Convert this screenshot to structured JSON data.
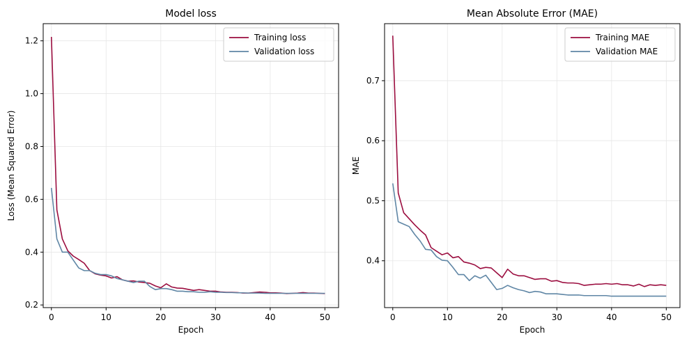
{
  "chart_data": [
    {
      "type": "line",
      "title": "Model loss",
      "xlabel": "Epoch",
      "ylabel": "Loss (Mean Squared Error)",
      "xlim": [
        -1.5,
        52.5
      ],
      "ylim": [
        0.19,
        1.265
      ],
      "xticks": [
        0,
        10,
        20,
        30,
        40,
        50
      ],
      "yticks": [
        0.2,
        0.4,
        0.6,
        0.8,
        1.0,
        1.2
      ],
      "ytick_format": 1,
      "grid": true,
      "legend_position": "top-right",
      "series": [
        {
          "name": "Training loss",
          "color": "#9b0d3f",
          "x": [
            0,
            1,
            2,
            3,
            4,
            5,
            6,
            7,
            8,
            9,
            10,
            11,
            12,
            13,
            14,
            15,
            16,
            17,
            18,
            19,
            20,
            21,
            22,
            23,
            24,
            25,
            26,
            27,
            28,
            29,
            30,
            31,
            32,
            33,
            34,
            35,
            36,
            37,
            38,
            39,
            40,
            41,
            42,
            43,
            44,
            45,
            46,
            47,
            48,
            49,
            50
          ],
          "y": [
            1.215,
            0.56,
            0.45,
            0.405,
            0.385,
            0.372,
            0.358,
            0.33,
            0.318,
            0.313,
            0.31,
            0.302,
            0.307,
            0.295,
            0.29,
            0.291,
            0.287,
            0.285,
            0.282,
            0.272,
            0.265,
            0.28,
            0.268,
            0.264,
            0.263,
            0.259,
            0.255,
            0.258,
            0.255,
            0.252,
            0.252,
            0.249,
            0.248,
            0.248,
            0.247,
            0.245,
            0.245,
            0.247,
            0.249,
            0.248,
            0.246,
            0.246,
            0.245,
            0.243,
            0.244,
            0.245,
            0.247,
            0.245,
            0.245,
            0.244,
            0.243
          ]
        },
        {
          "name": "Validation loss",
          "color": "#5f86a5",
          "x": [
            0,
            1,
            2,
            3,
            4,
            5,
            6,
            7,
            8,
            9,
            10,
            11,
            12,
            13,
            14,
            15,
            16,
            17,
            18,
            19,
            20,
            21,
            22,
            23,
            24,
            25,
            26,
            27,
            28,
            29,
            30,
            31,
            32,
            33,
            34,
            35,
            36,
            37,
            38,
            39,
            40,
            41,
            42,
            43,
            44,
            45,
            46,
            47,
            48,
            49,
            50
          ],
          "y": [
            0.643,
            0.45,
            0.4,
            0.4,
            0.37,
            0.34,
            0.33,
            0.33,
            0.32,
            0.315,
            0.315,
            0.31,
            0.3,
            0.295,
            0.29,
            0.285,
            0.29,
            0.29,
            0.27,
            0.258,
            0.262,
            0.262,
            0.258,
            0.252,
            0.252,
            0.25,
            0.25,
            0.248,
            0.248,
            0.25,
            0.248,
            0.248,
            0.247,
            0.247,
            0.246,
            0.246,
            0.245,
            0.245,
            0.245,
            0.244,
            0.244,
            0.244,
            0.244,
            0.244,
            0.244,
            0.244,
            0.244,
            0.244,
            0.244,
            0.244,
            0.244
          ]
        }
      ]
    },
    {
      "type": "line",
      "title": "Mean Absolute Error (MAE)",
      "xlabel": "Epoch",
      "ylabel": "MAE",
      "xlim": [
        -1.5,
        52.5
      ],
      "ylim": [
        0.322,
        0.795
      ],
      "xticks": [
        0,
        10,
        20,
        30,
        40,
        50
      ],
      "yticks": [
        0.4,
        0.5,
        0.6,
        0.7
      ],
      "ytick_format": 1,
      "grid": true,
      "legend_position": "top-right",
      "series": [
        {
          "name": "Training MAE",
          "color": "#9b0d3f",
          "x": [
            0,
            1,
            2,
            3,
            4,
            5,
            6,
            7,
            8,
            9,
            10,
            11,
            12,
            13,
            14,
            15,
            16,
            17,
            18,
            19,
            20,
            21,
            22,
            23,
            24,
            25,
            26,
            27,
            28,
            29,
            30,
            31,
            32,
            33,
            34,
            35,
            36,
            37,
            38,
            39,
            40,
            41,
            42,
            43,
            44,
            45,
            46,
            47,
            48,
            49,
            50
          ],
          "y": [
            0.775,
            0.513,
            0.48,
            0.47,
            0.46,
            0.451,
            0.443,
            0.422,
            0.416,
            0.41,
            0.413,
            0.405,
            0.407,
            0.398,
            0.396,
            0.393,
            0.387,
            0.389,
            0.388,
            0.38,
            0.372,
            0.386,
            0.378,
            0.375,
            0.375,
            0.372,
            0.369,
            0.37,
            0.37,
            0.366,
            0.367,
            0.364,
            0.363,
            0.363,
            0.362,
            0.359,
            0.36,
            0.361,
            0.361,
            0.362,
            0.361,
            0.362,
            0.36,
            0.36,
            0.358,
            0.361,
            0.357,
            0.36,
            0.359,
            0.36,
            0.359
          ]
        },
        {
          "name": "Validation MAE",
          "color": "#5f86a5",
          "x": [
            0,
            1,
            2,
            3,
            4,
            5,
            6,
            7,
            8,
            9,
            10,
            11,
            12,
            13,
            14,
            15,
            16,
            17,
            18,
            19,
            20,
            21,
            22,
            23,
            24,
            25,
            26,
            27,
            28,
            29,
            30,
            31,
            32,
            33,
            34,
            35,
            36,
            37,
            38,
            39,
            40,
            41,
            42,
            43,
            44,
            45,
            46,
            47,
            48,
            49,
            50
          ],
          "y": [
            0.529,
            0.465,
            0.461,
            0.457,
            0.444,
            0.433,
            0.419,
            0.418,
            0.407,
            0.401,
            0.4,
            0.389,
            0.377,
            0.377,
            0.367,
            0.375,
            0.371,
            0.376,
            0.364,
            0.352,
            0.354,
            0.359,
            0.355,
            0.352,
            0.35,
            0.347,
            0.349,
            0.348,
            0.345,
            0.345,
            0.345,
            0.344,
            0.343,
            0.343,
            0.343,
            0.342,
            0.342,
            0.342,
            0.342,
            0.342,
            0.341,
            0.341,
            0.341,
            0.341,
            0.341,
            0.341,
            0.341,
            0.341,
            0.341,
            0.341,
            0.341
          ]
        }
      ]
    }
  ]
}
